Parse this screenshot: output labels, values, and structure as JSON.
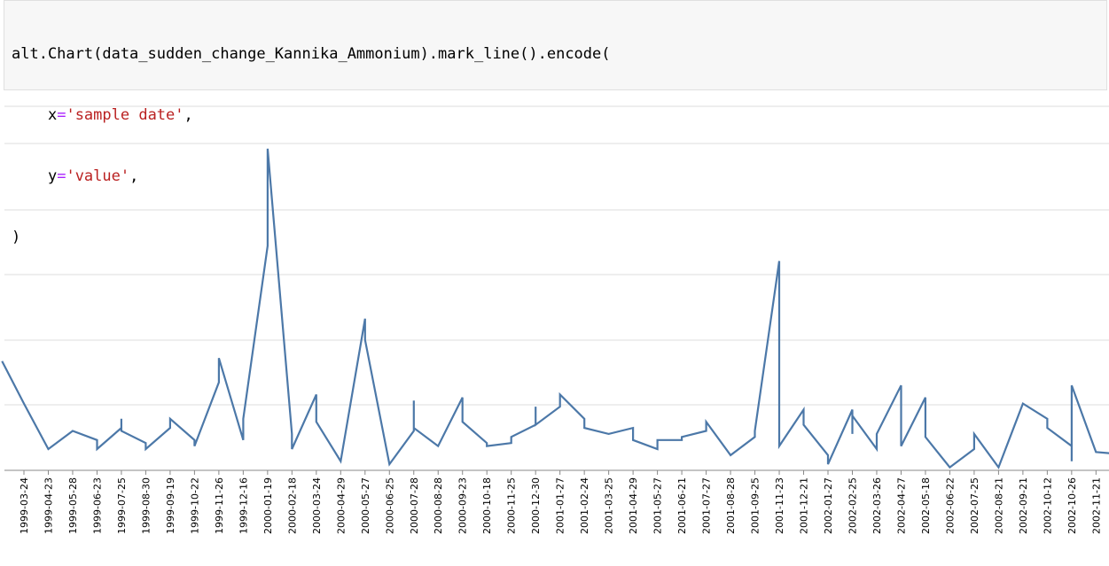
{
  "code_cell": {
    "line1": "alt.Chart(data_sudden_change_Kannika_Ammonium).mark_line().encode(",
    "line2_key": "x",
    "line2_eq": "=",
    "line2_str": "'sample date'",
    "line2_tail": ",",
    "line3_key": "y",
    "line3_eq": "=",
    "line3_str": "'value'",
    "line3_tail": ",",
    "line4": ")"
  },
  "chart_data": {
    "type": "line",
    "mark_color": "#4c78a8",
    "grid": true,
    "y_ticks_count": 6,
    "ylim": [
      0,
      6
    ],
    "ticks": [
      "1999-03-24",
      "1999-04-23",
      "1999-05-28",
      "1999-06-23",
      "1999-07-25",
      "1999-08-30",
      "1999-09-19",
      "1999-10-22",
      "1999-11-26",
      "1999-12-16",
      "2000-01-19",
      "2000-02-18",
      "2000-03-24",
      "2000-04-29",
      "2000-05-27",
      "2000-06-25",
      "2000-07-28",
      "2000-08-28",
      "2000-09-23",
      "2000-10-18",
      "2000-11-25",
      "2000-12-30",
      "2001-01-27",
      "2001-02-24",
      "2001-03-25",
      "2001-04-29",
      "2001-05-27",
      "2001-06-21",
      "2001-07-27",
      "2001-08-28",
      "2001-09-25",
      "2001-11-23",
      "2001-12-21",
      "2002-01-27",
      "2002-02-25",
      "2002-03-26",
      "2002-04-27",
      "2002-05-18",
      "2002-06-22",
      "2002-07-25",
      "2002-08-21",
      "2002-09-21",
      "2002-10-12",
      "2002-10-26",
      "2002-11-21"
    ],
    "points": [
      {
        "x": -0.9,
        "y": 1.8
      },
      {
        "x": 0,
        "y": 1.1
      },
      {
        "x": 1,
        "y": 0.35
      },
      {
        "x": 2,
        "y": 0.65
      },
      {
        "x": 3,
        "y": 0.5
      },
      {
        "x": 3,
        "y": 0.35
      },
      {
        "x": 4,
        "y": 0.7
      },
      {
        "x": 4,
        "y": 0.85
      },
      {
        "x": 4,
        "y": 0.65
      },
      {
        "x": 5,
        "y": 0.45
      },
      {
        "x": 5,
        "y": 0.35
      },
      {
        "x": 6,
        "y": 0.7
      },
      {
        "x": 6,
        "y": 0.85
      },
      {
        "x": 7,
        "y": 0.5
      },
      {
        "x": 7,
        "y": 0.4
      },
      {
        "x": 8,
        "y": 1.45
      },
      {
        "x": 8,
        "y": 1.85
      },
      {
        "x": 9,
        "y": 0.5
      },
      {
        "x": 9,
        "y": 0.85
      },
      {
        "x": 10,
        "y": 3.7
      },
      {
        "x": 10,
        "y": 5.3
      },
      {
        "x": 11,
        "y": 0.6
      },
      {
        "x": 11,
        "y": 0.35
      },
      {
        "x": 12,
        "y": 1.25
      },
      {
        "x": 12,
        "y": 0.8
      },
      {
        "x": 13,
        "y": 0.15
      },
      {
        "x": 14,
        "y": 2.5
      },
      {
        "x": 14,
        "y": 2.15
      },
      {
        "x": 15,
        "y": 0.1
      },
      {
        "x": 16,
        "y": 0.65
      },
      {
        "x": 16,
        "y": 1.15
      },
      {
        "x": 16,
        "y": 0.7
      },
      {
        "x": 17,
        "y": 0.4
      },
      {
        "x": 18,
        "y": 1.2
      },
      {
        "x": 18,
        "y": 0.8
      },
      {
        "x": 19,
        "y": 0.45
      },
      {
        "x": 19,
        "y": 0.4
      },
      {
        "x": 20,
        "y": 0.45
      },
      {
        "x": 20,
        "y": 0.55
      },
      {
        "x": 21,
        "y": 0.75
      },
      {
        "x": 21,
        "y": 1.05
      },
      {
        "x": 21,
        "y": 0.75
      },
      {
        "x": 22,
        "y": 1.05
      },
      {
        "x": 22,
        "y": 1.25
      },
      {
        "x": 23,
        "y": 0.85
      },
      {
        "x": 23,
        "y": 0.7
      },
      {
        "x": 24,
        "y": 0.6
      },
      {
        "x": 25,
        "y": 0.7
      },
      {
        "x": 25,
        "y": 0.5
      },
      {
        "x": 26,
        "y": 0.35
      },
      {
        "x": 26,
        "y": 0.5
      },
      {
        "x": 27,
        "y": 0.5
      },
      {
        "x": 27,
        "y": 0.55
      },
      {
        "x": 28,
        "y": 0.65
      },
      {
        "x": 28,
        "y": 0.8
      },
      {
        "x": 29,
        "y": 0.25
      },
      {
        "x": 30,
        "y": 0.55
      },
      {
        "x": 30,
        "y": 0.65
      },
      {
        "x": 31,
        "y": 3.45
      },
      {
        "x": 31,
        "y": 0.4
      },
      {
        "x": 32,
        "y": 1.0
      },
      {
        "x": 32,
        "y": 0.75
      },
      {
        "x": 33,
        "y": 0.25
      },
      {
        "x": 33,
        "y": 0.1
      },
      {
        "x": 34,
        "y": 1.0
      },
      {
        "x": 34,
        "y": 0.6
      },
      {
        "x": 34,
        "y": 0.9
      },
      {
        "x": 35,
        "y": 0.35
      },
      {
        "x": 35,
        "y": 0.6
      },
      {
        "x": 36,
        "y": 1.4
      },
      {
        "x": 36,
        "y": 0.4
      },
      {
        "x": 37,
        "y": 1.2
      },
      {
        "x": 37,
        "y": 0.55
      },
      {
        "x": 38,
        "y": 0.05
      },
      {
        "x": 39,
        "y": 0.35
      },
      {
        "x": 39,
        "y": 0.6
      },
      {
        "x": 40,
        "y": 0.05
      },
      {
        "x": 41,
        "y": 1.1
      },
      {
        "x": 42,
        "y": 0.85
      },
      {
        "x": 42,
        "y": 0.7
      },
      {
        "x": 43,
        "y": 0.4
      },
      {
        "x": 43,
        "y": 0.15
      },
      {
        "x": 43,
        "y": 1.4
      },
      {
        "x": 44,
        "y": 0.3
      },
      {
        "x": 44.6,
        "y": 0.28
      }
    ]
  }
}
